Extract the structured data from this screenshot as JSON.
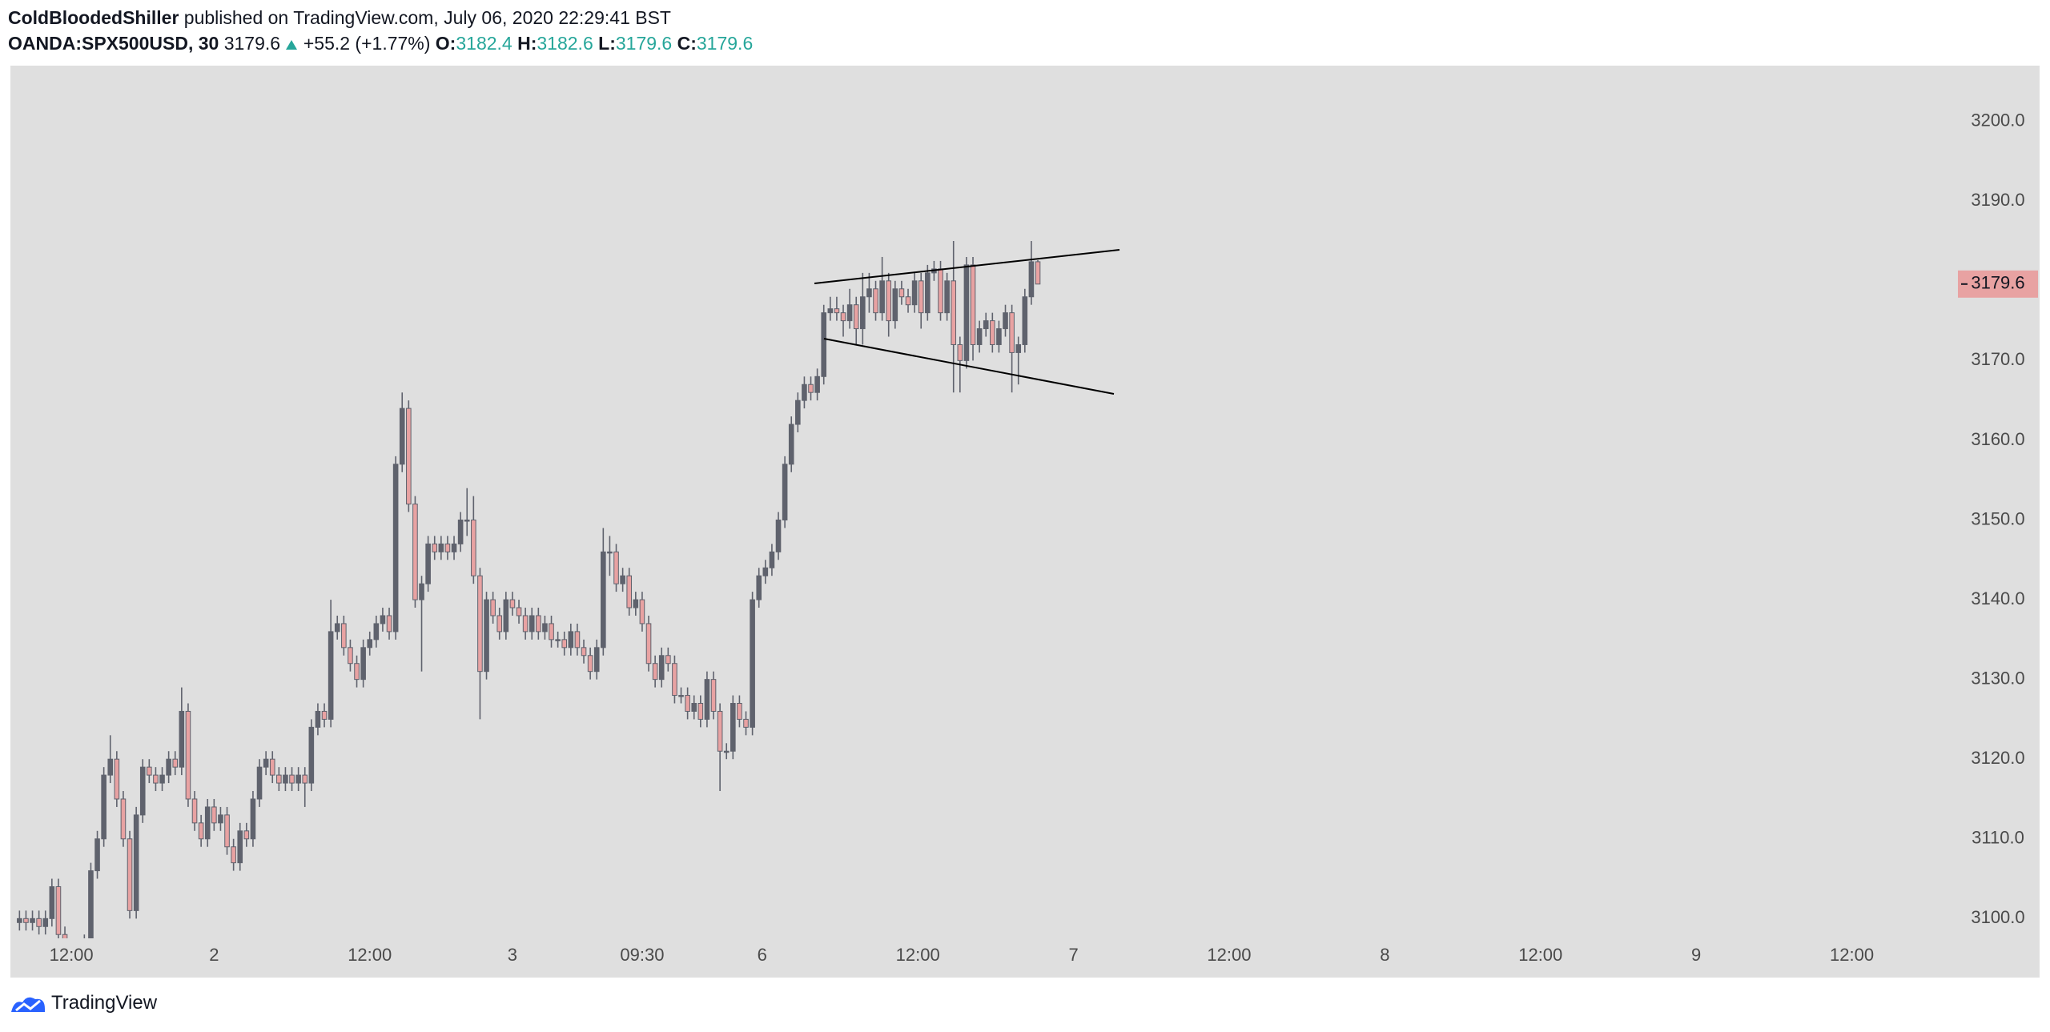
{
  "header": {
    "author": "ColdBloodedShiller",
    "published": "published on TradingView.com, July 06, 2020 22:29:41 BST",
    "symbol": "OANDA:SPX500USD, 30",
    "change": "+55.2 (+1.77%)",
    "o_label": "O:",
    "h_label": "H:",
    "l_label": "L:",
    "c_label": "C:"
  },
  "chart_data": {
    "type": "candlestick",
    "up_color": "#5f626d",
    "down_color": "#e8a2a2",
    "wick_color": "#5f626d",
    "xlim": [
      -1.4,
      297
    ],
    "ylim": [
      3092.6,
      3207.0
    ],
    "xticks": [
      {
        "value": 8,
        "label": "12:00"
      },
      {
        "value": 30,
        "label": "2"
      },
      {
        "value": 54,
        "label": "12:00"
      },
      {
        "value": 76,
        "label": "3"
      },
      {
        "value": 96,
        "label": "09:30"
      },
      {
        "value": 114.5,
        "label": "6"
      },
      {
        "value": 138.5,
        "label": "12:00"
      },
      {
        "value": 162.5,
        "label": "7"
      },
      {
        "value": 186.5,
        "label": "12:00"
      },
      {
        "value": 210.5,
        "label": "8"
      },
      {
        "value": 234.5,
        "label": "12:00"
      },
      {
        "value": 258.5,
        "label": "9"
      },
      {
        "value": 282.5,
        "label": "12:00"
      }
    ],
    "yticks": [
      {
        "value": 3100,
        "label": "3100.0"
      },
      {
        "value": 3110,
        "label": "3110.0"
      },
      {
        "value": 3120,
        "label": "3120.0"
      },
      {
        "value": 3130,
        "label": "3130.0"
      },
      {
        "value": 3140,
        "label": "3140.0"
      },
      {
        "value": 3150,
        "label": "3150.0"
      },
      {
        "value": 3160,
        "label": "3160.0"
      },
      {
        "value": 3170,
        "label": "3170.0"
      },
      {
        "value": 3180,
        "label": "3180.0"
      },
      {
        "value": 3190,
        "label": "3190.0"
      },
      {
        "value": 3200,
        "label": "3200.0"
      }
    ],
    "grid": false,
    "open": [
      3099.5,
      3100,
      3099.5,
      3100,
      3099,
      3100,
      3104,
      3098,
      3094,
      3093,
      3095,
      3097,
      3106,
      3110,
      3118,
      3120,
      3115,
      3110,
      3101,
      3113,
      3119,
      3118,
      3117,
      3118,
      3120,
      3119,
      3126,
      3115,
      3112,
      3110,
      3114,
      3112,
      3113,
      3109,
      3107,
      3111,
      3110,
      3115,
      3119,
      3120,
      3118,
      3117,
      3118,
      3117,
      3118,
      3117,
      3124,
      3126,
      3125,
      3136,
      3137,
      3134,
      3132,
      3130,
      3134,
      3135,
      3137,
      3138,
      3136,
      3157,
      3164,
      3152,
      3140,
      3142,
      3147,
      3146,
      3147,
      3146,
      3147,
      3150,
      3150,
      3143,
      3131,
      3140,
      3138,
      3136,
      3140,
      3139,
      3138,
      3136,
      3138,
      3136,
      3137,
      3135,
      3135,
      3134,
      3136,
      3134,
      3133,
      3131,
      3134,
      3146,
      3146,
      3142,
      3143,
      3139,
      3140,
      3137,
      3132,
      3130,
      3133,
      3132,
      3128,
      3128,
      3126,
      3127,
      3125,
      3130,
      3126,
      3121,
      3121,
      3127,
      3125,
      3124,
      3140,
      3143,
      3144,
      3146,
      3150,
      3157,
      3162,
      3165,
      3167,
      3166,
      3168,
      3176,
      3176.5,
      3176,
      3175,
      3177,
      3174,
      3178,
      3179,
      3176,
      3180,
      3175,
      3179,
      3178,
      3177,
      3180,
      3176,
      3181,
      3181.5,
      3176,
      3180,
      3172,
      3170,
      3182,
      3172,
      3174,
      3175,
      3172,
      3174,
      3176,
      3171,
      3172,
      3178,
      3182.4
    ],
    "high": [
      3101,
      3101,
      3101,
      3101,
      3101,
      3105,
      3105,
      3099,
      3095,
      3096,
      3098,
      3107,
      3111,
      3119,
      3123,
      3121,
      3116,
      3111,
      3114,
      3120,
      3120,
      3119,
      3119,
      3121,
      3121,
      3129,
      3127,
      3116,
      3113,
      3115,
      3115,
      3114,
      3114,
      3110,
      3112,
      3112,
      3116,
      3120,
      3121,
      3121,
      3119,
      3119,
      3119,
      3119,
      3119,
      3125,
      3127,
      3127,
      3140,
      3138,
      3138,
      3135,
      3133,
      3135,
      3136,
      3138,
      3139,
      3139,
      3158,
      3166,
      3165,
      3153,
      3143,
      3148,
      3148,
      3148,
      3148,
      3148,
      3151,
      3154,
      3153,
      3144,
      3141,
      3141,
      3139,
      3141,
      3141,
      3140,
      3139,
      3139,
      3139,
      3138,
      3138,
      3136,
      3136,
      3137,
      3137,
      3135,
      3134,
      3135,
      3149,
      3148,
      3147,
      3144,
      3144,
      3141,
      3141,
      3138,
      3133,
      3134,
      3134,
      3133,
      3129,
      3129,
      3128,
      3128,
      3131,
      3131,
      3127,
      3122,
      3128,
      3128,
      3126,
      3141,
      3144,
      3145,
      3147,
      3151,
      3158,
      3163,
      3166,
      3168,
      3168,
      3169,
      3177,
      3178,
      3178,
      3177,
      3179,
      3178,
      3181,
      3181,
      3180,
      3183,
      3181,
      3180,
      3180,
      3179,
      3181,
      3181,
      3182,
      3182.5,
      3182.5,
      3181,
      3185,
      3173,
      3183,
      3183,
      3175,
      3176,
      3176,
      3175,
      3177,
      3177,
      3173,
      3179,
      3185,
      3182.6
    ],
    "low": [
      3098.5,
      3098.5,
      3098.5,
      3098,
      3098,
      3099,
      3097,
      3093,
      3092,
      3092,
      3094,
      3096,
      3105,
      3109,
      3117,
      3114,
      3109,
      3100,
      3100,
      3112,
      3117,
      3116,
      3116,
      3117,
      3118,
      3118,
      3114,
      3111,
      3109,
      3109,
      3111,
      3111,
      3108,
      3106,
      3106,
      3109,
      3109,
      3114,
      3118,
      3117,
      3116,
      3116,
      3116,
      3116,
      3114,
      3116,
      3123,
      3124,
      3124,
      3135,
      3133,
      3131,
      3129,
      3129,
      3133,
      3134,
      3136,
      3135,
      3135,
      3156,
      3151,
      3139,
      3131,
      3141,
      3145,
      3145,
      3145,
      3145,
      3146,
      3148,
      3142,
      3125,
      3130,
      3137,
      3135,
      3135,
      3138,
      3137,
      3135,
      3135,
      3135,
      3135,
      3134,
      3134,
      3133,
      3133,
      3133,
      3132,
      3130,
      3130,
      3133,
      3143,
      3141,
      3141,
      3138,
      3138,
      3136,
      3131,
      3129,
      3129,
      3131,
      3127,
      3127,
      3125,
      3125,
      3124,
      3124,
      3125,
      3116,
      3120,
      3120,
      3124,
      3123,
      3123,
      3139,
      3142,
      3143,
      3145,
      3149,
      3156,
      3161,
      3164,
      3165,
      3165,
      3167,
      3175,
      3175,
      3173,
      3174,
      3172,
      3172,
      3176,
      3175,
      3175,
      3173,
      3174,
      3177,
      3176,
      3176,
      3174,
      3175,
      3180,
      3175,
      3175,
      3166,
      3166,
      3169,
      3170,
      3171,
      3173,
      3171,
      3171,
      3173,
      3166,
      3167,
      3171,
      3177,
      3179.6
    ],
    "close": [
      3100,
      3099.5,
      3100,
      3099,
      3100,
      3104,
      3098,
      3094,
      3093,
      3095,
      3097,
      3106,
      3110,
      3118,
      3120,
      3115,
      3110,
      3101,
      3113,
      3119,
      3118,
      3117,
      3118,
      3120,
      3119,
      3126,
      3115,
      3112,
      3110,
      3114,
      3112,
      3113,
      3109,
      3107,
      3111,
      3110,
      3115,
      3119,
      3120,
      3118,
      3117,
      3118,
      3117,
      3118,
      3117,
      3124,
      3126,
      3125,
      3136,
      3137,
      3134,
      3132,
      3130,
      3134,
      3135,
      3137,
      3138,
      3136,
      3157,
      3164,
      3152,
      3140,
      3142,
      3147,
      3146,
      3147,
      3146,
      3147,
      3150,
      3150,
      3143,
      3131,
      3140,
      3138,
      3136,
      3140,
      3139,
      3138,
      3136,
      3138,
      3136,
      3137,
      3135,
      3135,
      3134,
      3136,
      3134,
      3133,
      3131,
      3134,
      3146,
      3146,
      3142,
      3143,
      3139,
      3140,
      3137,
      3132,
      3130,
      3133,
      3132,
      3128,
      3128,
      3126,
      3127,
      3125,
      3130,
      3126,
      3121,
      3121,
      3127,
      3125,
      3124,
      3140,
      3143,
      3144,
      3146,
      3150,
      3157,
      3162,
      3165,
      3167,
      3166,
      3168,
      3176,
      3176.5,
      3176,
      3175,
      3177,
      3174,
      3178,
      3179,
      3176,
      3180,
      3175,
      3179,
      3178,
      3177,
      3180,
      3176,
      3181,
      3181.5,
      3176,
      3180,
      3172,
      3170,
      3182,
      3172,
      3174,
      3175,
      3172,
      3174,
      3176,
      3171,
      3172,
      3178,
      3182.4,
      3179.6
    ]
  },
  "footer": {
    "brand": "TradingView"
  }
}
